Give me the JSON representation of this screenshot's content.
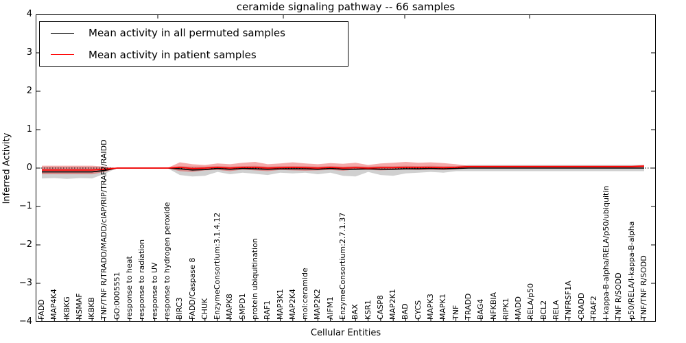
{
  "title": "ceramide signaling pathway -- 66 samples",
  "axes": {
    "xlabel": "Cellular Entities",
    "ylabel": "Inferred Activity",
    "yticks": [
      "4",
      "3",
      "2",
      "1",
      "0",
      "−1",
      "−2",
      "−3",
      "−4"
    ]
  },
  "legend": {
    "items": [
      {
        "label": "Mean activity in all permuted samples",
        "color": "#000000"
      },
      {
        "label": "Mean activity in patient samples",
        "color": "#ff0000"
      }
    ]
  },
  "chart_data": {
    "type": "line",
    "title": "ceramide signaling pathway -- 66 samples",
    "xlabel": "Cellular Entities",
    "ylabel": "Inferred Activity",
    "ylim": [
      -4,
      4
    ],
    "grid": false,
    "legend_position": "upper left",
    "zero_line": "dotted",
    "categories": [
      "FADD",
      "MAP4K4",
      "IKBKG",
      "NSMAF",
      "IKBKB",
      "TNF/TNF R/TRADD/MADD/cIAP/RIP/TRAF2/RAIDD",
      "GO:0005551",
      "response to heat",
      "response to radiation",
      "response to UV",
      "response to hydrogen peroxide",
      "BIRC3",
      "FADD/Caspase 8",
      "CHUK",
      "EnzymeConsortium:3.1.4.12",
      "MAPK8",
      "SMPD1",
      "protein ubiquitination",
      "RAF1",
      "MAP3K1",
      "MAP2K4",
      "mol:ceramide",
      "MAP2K2",
      "AIFM1",
      "EnzymeConsortium:2.7.1.37",
      "BAX",
      "KSR1",
      "CASP8",
      "MAP2K1",
      "BAD",
      "CYCS",
      "MAPK3",
      "MAPK1",
      "TNF",
      "TRADD",
      "BAG4",
      "NFKBIA",
      "RIPK1",
      "MADD",
      "RELA/p50",
      "BCL2",
      "RELA",
      "TNFRSF1A",
      "CRADD",
      "TRAF2",
      "I-kappa-B-alpha/RELA/p50/ubiquitin",
      "TNF R/SODD",
      "p50/RELA/I-kappa-B-alpha",
      "TNF/TNF R/SODD"
    ],
    "series": [
      {
        "name": "Mean activity in all permuted samples",
        "color": "#000000",
        "values": [
          -0.1,
          -0.1,
          -0.1,
          -0.1,
          -0.1,
          -0.06,
          0,
          0,
          0,
          0,
          0,
          -0.02,
          -0.05,
          -0.04,
          -0.01,
          -0.03,
          -0.01,
          -0.02,
          -0.03,
          -0.02,
          -0.02,
          -0.02,
          -0.03,
          -0.01,
          -0.03,
          -0.03,
          -0.02,
          -0.03,
          -0.03,
          -0.02,
          -0.02,
          -0.01,
          -0.02,
          -0.01,
          0,
          0,
          0,
          0,
          0,
          0,
          0,
          0,
          0,
          0,
          0,
          0,
          0,
          0,
          0
        ]
      },
      {
        "name": "Mean activity in patient samples",
        "color": "#ff0000",
        "values": [
          -0.05,
          -0.05,
          -0.05,
          -0.05,
          -0.05,
          -0.03,
          0,
          0,
          0,
          0,
          0,
          0.02,
          -0.01,
          0.0,
          0.02,
          0.0,
          0.02,
          0.02,
          0.0,
          0.01,
          0.02,
          0.01,
          0.0,
          0.02,
          0.0,
          0.01,
          0.0,
          0.01,
          0.01,
          0.02,
          0.02,
          0.02,
          0.01,
          0.02,
          0.04,
          0.04,
          0.04,
          0.04,
          0.04,
          0.04,
          0.04,
          0.04,
          0.04,
          0.04,
          0.04,
          0.04,
          0.04,
          0.04,
          0.05
        ]
      }
    ],
    "bands": [
      {
        "name": "permuted samples range",
        "color": "rgba(100,100,100,0.30)",
        "upper": [
          0.03,
          0.03,
          0.03,
          0.03,
          0.03,
          0.02,
          0,
          0,
          0,
          0,
          0,
          0.05,
          0.04,
          0.04,
          0.05,
          0.04,
          0.05,
          0.06,
          0.04,
          0.05,
          0.05,
          0.05,
          0.04,
          0.05,
          0.04,
          0.05,
          0.04,
          0.05,
          0.05,
          0.06,
          0.05,
          0.06,
          0.05,
          0.05,
          0.08,
          0.08,
          0.08,
          0.08,
          0.08,
          0.08,
          0.08,
          0.08,
          0.08,
          0.08,
          0.08,
          0.08,
          0.08,
          0.08,
          0.08
        ],
        "lower": [
          -0.27,
          -0.26,
          -0.28,
          -0.26,
          -0.27,
          -0.15,
          0,
          0,
          0,
          0,
          0,
          -0.18,
          -0.22,
          -0.2,
          -0.1,
          -0.16,
          -0.12,
          -0.15,
          -0.18,
          -0.12,
          -0.14,
          -0.12,
          -0.16,
          -0.12,
          -0.2,
          -0.22,
          -0.1,
          -0.18,
          -0.2,
          -0.14,
          -0.12,
          -0.1,
          -0.12,
          -0.08,
          -0.08,
          -0.08,
          -0.08,
          -0.08,
          -0.08,
          -0.08,
          -0.08,
          -0.08,
          -0.08,
          -0.08,
          -0.08,
          -0.08,
          -0.08,
          -0.08,
          -0.08
        ]
      },
      {
        "name": "patient samples range",
        "color": "rgba(230,30,30,0.38)",
        "upper": [
          0.06,
          0.06,
          0.06,
          0.06,
          0.06,
          0.04,
          0,
          0,
          0,
          0,
          0,
          0.15,
          0.1,
          0.08,
          0.12,
          0.1,
          0.14,
          0.16,
          0.1,
          0.12,
          0.15,
          0.12,
          0.1,
          0.13,
          0.11,
          0.14,
          0.08,
          0.12,
          0.14,
          0.16,
          0.14,
          0.15,
          0.13,
          0.1,
          0.06,
          0.06,
          0.06,
          0.06,
          0.06,
          0.06,
          0.06,
          0.06,
          0.06,
          0.06,
          0.06,
          0.06,
          0.06,
          0.06,
          0.08
        ],
        "lower": [
          -0.16,
          -0.16,
          -0.16,
          -0.16,
          -0.16,
          -0.1,
          0,
          0,
          0,
          0,
          0,
          -0.08,
          -0.1,
          -0.06,
          -0.05,
          -0.08,
          -0.04,
          -0.06,
          -0.08,
          -0.05,
          -0.06,
          -0.07,
          -0.06,
          -0.05,
          -0.07,
          -0.04,
          -0.05,
          -0.06,
          -0.05,
          -0.04,
          -0.05,
          -0.04,
          -0.05,
          -0.03,
          0.01,
          0.01,
          0.01,
          0.01,
          0.01,
          0.01,
          0.01,
          0.01,
          0.01,
          0.01,
          0.01,
          0.01,
          0.01,
          0.01,
          0.02
        ]
      }
    ]
  }
}
